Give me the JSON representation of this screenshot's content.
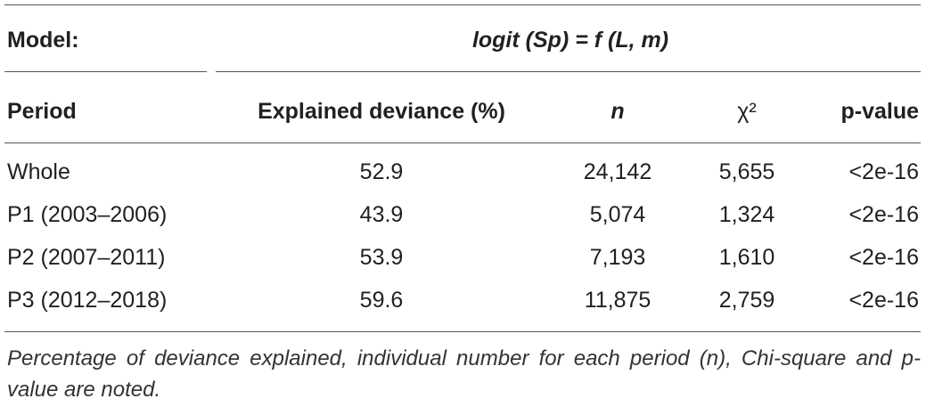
{
  "table": {
    "model_label": "Model:",
    "model_formula": "logit (Sp) = f (L, m)",
    "columns": [
      "Period",
      "Explained deviance (%)",
      "n",
      "χ²",
      "p-value"
    ],
    "rows": [
      [
        "Whole",
        "52.9",
        "24,142",
        "5,655",
        "<2e-16"
      ],
      [
        "P1 (2003–2006)",
        "43.9",
        "5,074",
        "1,324",
        "<2e-16"
      ],
      [
        "P2 (2007–2011)",
        "53.9",
        "7,193",
        "1,610",
        "<2e-16"
      ],
      [
        "P3 (2012–2018)",
        "59.6",
        "11,875",
        "2,759",
        "<2e-16"
      ]
    ],
    "footnote": "Percentage of deviance explained, individual number for each period (n), Chi-square and p-value are noted."
  }
}
